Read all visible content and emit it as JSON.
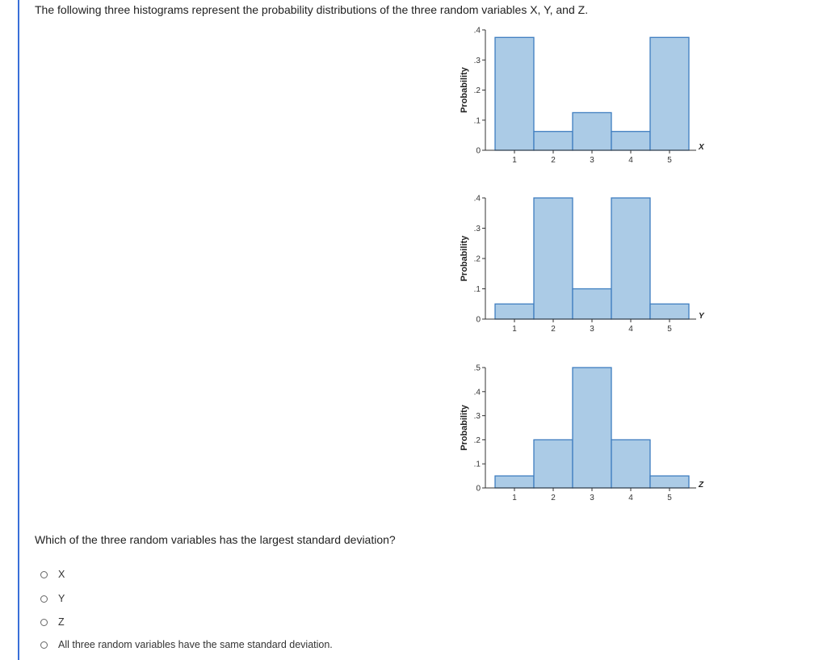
{
  "question": {
    "intro": "The following three histograms represent the probability distributions of the three random variables X, Y, and Z.",
    "prompt": "Which of the three random variables has the largest standard deviation?",
    "options": [
      {
        "label": "X"
      },
      {
        "label": "Y"
      },
      {
        "label": "Z"
      },
      {
        "label": "All three random variables have the same standard deviation."
      }
    ]
  },
  "colors": {
    "bar_fill": "#abcbe6",
    "bar_stroke": "#3f7ec0",
    "axis": "#333333",
    "accent_rule": "#3a6fd8"
  },
  "chart_data": [
    {
      "type": "bar",
      "categories": [
        "1",
        "2",
        "3",
        "4",
        "5"
      ],
      "values": [
        0.375,
        0.0625,
        0.125,
        0.0625,
        0.375
      ],
      "xlabel": "X",
      "ylabel": "Probability",
      "yticks": [
        ".4",
        ".3",
        ".2",
        ".1",
        "0"
      ],
      "ylim": [
        0,
        0.4
      ]
    },
    {
      "type": "bar",
      "categories": [
        "1",
        "2",
        "3",
        "4",
        "5"
      ],
      "values": [
        0.05,
        0.4,
        0.1,
        0.4,
        0.05
      ],
      "xlabel": "Y",
      "ylabel": "Probability",
      "yticks": [
        ".4",
        ".3",
        ".2",
        ".1",
        "0"
      ],
      "ylim": [
        0,
        0.4
      ]
    },
    {
      "type": "bar",
      "categories": [
        "1",
        "2",
        "3",
        "4",
        "5"
      ],
      "values": [
        0.05,
        0.2,
        0.5,
        0.2,
        0.05
      ],
      "xlabel": "Z",
      "ylabel": "Probability",
      "yticks": [
        ".5",
        ".4",
        ".3",
        ".2",
        ".1",
        "0"
      ],
      "ylim": [
        0,
        0.5
      ]
    }
  ]
}
